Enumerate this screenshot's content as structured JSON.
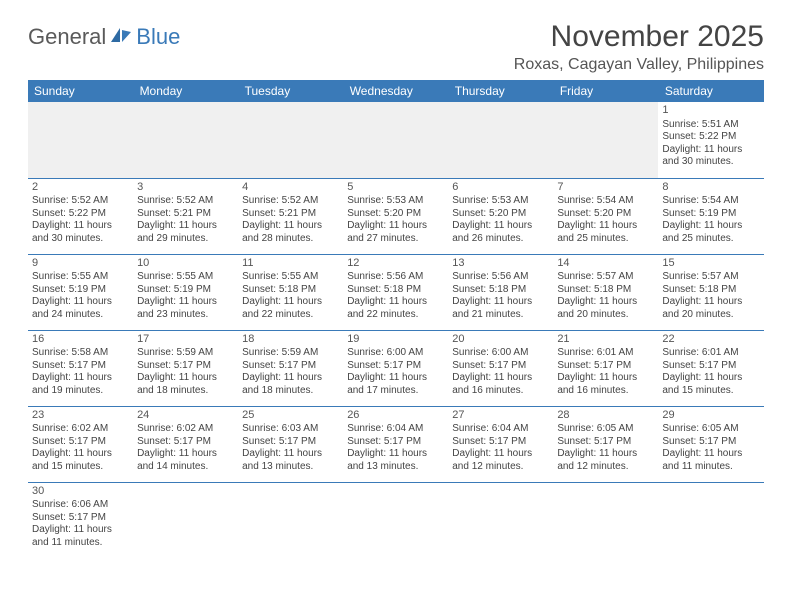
{
  "brand": {
    "part1": "General",
    "part2": "Blue"
  },
  "title": "November 2025",
  "location": "Roxas, Cagayan Valley, Philippines",
  "colors": {
    "header_bg": "#3a7ab8",
    "header_text": "#ffffff",
    "grid_line": "#3a7ab8",
    "body_text": "#444444",
    "logo_gray": "#5a5a5a",
    "logo_blue": "#3a7ab8",
    "empty_week1_bg": "#f0f0f0"
  },
  "day_headers": [
    "Sunday",
    "Monday",
    "Tuesday",
    "Wednesday",
    "Thursday",
    "Friday",
    "Saturday"
  ],
  "weeks": [
    [
      null,
      null,
      null,
      null,
      null,
      null,
      {
        "n": "1",
        "sr": "Sunrise: 5:51 AM",
        "ss": "Sunset: 5:22 PM",
        "d1": "Daylight: 11 hours",
        "d2": "and 30 minutes."
      }
    ],
    [
      {
        "n": "2",
        "sr": "Sunrise: 5:52 AM",
        "ss": "Sunset: 5:22 PM",
        "d1": "Daylight: 11 hours",
        "d2": "and 30 minutes."
      },
      {
        "n": "3",
        "sr": "Sunrise: 5:52 AM",
        "ss": "Sunset: 5:21 PM",
        "d1": "Daylight: 11 hours",
        "d2": "and 29 minutes."
      },
      {
        "n": "4",
        "sr": "Sunrise: 5:52 AM",
        "ss": "Sunset: 5:21 PM",
        "d1": "Daylight: 11 hours",
        "d2": "and 28 minutes."
      },
      {
        "n": "5",
        "sr": "Sunrise: 5:53 AM",
        "ss": "Sunset: 5:20 PM",
        "d1": "Daylight: 11 hours",
        "d2": "and 27 minutes."
      },
      {
        "n": "6",
        "sr": "Sunrise: 5:53 AM",
        "ss": "Sunset: 5:20 PM",
        "d1": "Daylight: 11 hours",
        "d2": "and 26 minutes."
      },
      {
        "n": "7",
        "sr": "Sunrise: 5:54 AM",
        "ss": "Sunset: 5:20 PM",
        "d1": "Daylight: 11 hours",
        "d2": "and 25 minutes."
      },
      {
        "n": "8",
        "sr": "Sunrise: 5:54 AM",
        "ss": "Sunset: 5:19 PM",
        "d1": "Daylight: 11 hours",
        "d2": "and 25 minutes."
      }
    ],
    [
      {
        "n": "9",
        "sr": "Sunrise: 5:55 AM",
        "ss": "Sunset: 5:19 PM",
        "d1": "Daylight: 11 hours",
        "d2": "and 24 minutes."
      },
      {
        "n": "10",
        "sr": "Sunrise: 5:55 AM",
        "ss": "Sunset: 5:19 PM",
        "d1": "Daylight: 11 hours",
        "d2": "and 23 minutes."
      },
      {
        "n": "11",
        "sr": "Sunrise: 5:55 AM",
        "ss": "Sunset: 5:18 PM",
        "d1": "Daylight: 11 hours",
        "d2": "and 22 minutes."
      },
      {
        "n": "12",
        "sr": "Sunrise: 5:56 AM",
        "ss": "Sunset: 5:18 PM",
        "d1": "Daylight: 11 hours",
        "d2": "and 22 minutes."
      },
      {
        "n": "13",
        "sr": "Sunrise: 5:56 AM",
        "ss": "Sunset: 5:18 PM",
        "d1": "Daylight: 11 hours",
        "d2": "and 21 minutes."
      },
      {
        "n": "14",
        "sr": "Sunrise: 5:57 AM",
        "ss": "Sunset: 5:18 PM",
        "d1": "Daylight: 11 hours",
        "d2": "and 20 minutes."
      },
      {
        "n": "15",
        "sr": "Sunrise: 5:57 AM",
        "ss": "Sunset: 5:18 PM",
        "d1": "Daylight: 11 hours",
        "d2": "and 20 minutes."
      }
    ],
    [
      {
        "n": "16",
        "sr": "Sunrise: 5:58 AM",
        "ss": "Sunset: 5:17 PM",
        "d1": "Daylight: 11 hours",
        "d2": "and 19 minutes."
      },
      {
        "n": "17",
        "sr": "Sunrise: 5:59 AM",
        "ss": "Sunset: 5:17 PM",
        "d1": "Daylight: 11 hours",
        "d2": "and 18 minutes."
      },
      {
        "n": "18",
        "sr": "Sunrise: 5:59 AM",
        "ss": "Sunset: 5:17 PM",
        "d1": "Daylight: 11 hours",
        "d2": "and 18 minutes."
      },
      {
        "n": "19",
        "sr": "Sunrise: 6:00 AM",
        "ss": "Sunset: 5:17 PM",
        "d1": "Daylight: 11 hours",
        "d2": "and 17 minutes."
      },
      {
        "n": "20",
        "sr": "Sunrise: 6:00 AM",
        "ss": "Sunset: 5:17 PM",
        "d1": "Daylight: 11 hours",
        "d2": "and 16 minutes."
      },
      {
        "n": "21",
        "sr": "Sunrise: 6:01 AM",
        "ss": "Sunset: 5:17 PM",
        "d1": "Daylight: 11 hours",
        "d2": "and 16 minutes."
      },
      {
        "n": "22",
        "sr": "Sunrise: 6:01 AM",
        "ss": "Sunset: 5:17 PM",
        "d1": "Daylight: 11 hours",
        "d2": "and 15 minutes."
      }
    ],
    [
      {
        "n": "23",
        "sr": "Sunrise: 6:02 AM",
        "ss": "Sunset: 5:17 PM",
        "d1": "Daylight: 11 hours",
        "d2": "and 15 minutes."
      },
      {
        "n": "24",
        "sr": "Sunrise: 6:02 AM",
        "ss": "Sunset: 5:17 PM",
        "d1": "Daylight: 11 hours",
        "d2": "and 14 minutes."
      },
      {
        "n": "25",
        "sr": "Sunrise: 6:03 AM",
        "ss": "Sunset: 5:17 PM",
        "d1": "Daylight: 11 hours",
        "d2": "and 13 minutes."
      },
      {
        "n": "26",
        "sr": "Sunrise: 6:04 AM",
        "ss": "Sunset: 5:17 PM",
        "d1": "Daylight: 11 hours",
        "d2": "and 13 minutes."
      },
      {
        "n": "27",
        "sr": "Sunrise: 6:04 AM",
        "ss": "Sunset: 5:17 PM",
        "d1": "Daylight: 11 hours",
        "d2": "and 12 minutes."
      },
      {
        "n": "28",
        "sr": "Sunrise: 6:05 AM",
        "ss": "Sunset: 5:17 PM",
        "d1": "Daylight: 11 hours",
        "d2": "and 12 minutes."
      },
      {
        "n": "29",
        "sr": "Sunrise: 6:05 AM",
        "ss": "Sunset: 5:17 PM",
        "d1": "Daylight: 11 hours",
        "d2": "and 11 minutes."
      }
    ],
    [
      {
        "n": "30",
        "sr": "Sunrise: 6:06 AM",
        "ss": "Sunset: 5:17 PM",
        "d1": "Daylight: 11 hours",
        "d2": "and 11 minutes."
      },
      null,
      null,
      null,
      null,
      null,
      null
    ]
  ]
}
